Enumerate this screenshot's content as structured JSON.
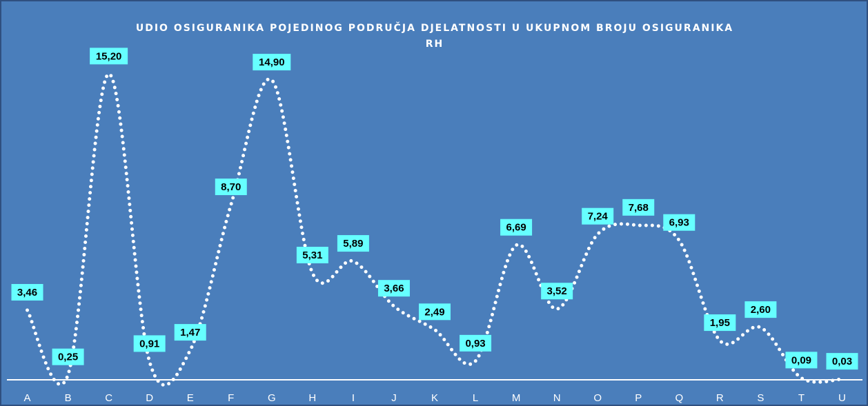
{
  "chart_data": {
    "type": "line",
    "title": "UDIO OSIGURANIKA POJEDINOG PODRUČJA DJELATNOSTI U UKUPNOM BROJU OSIGURANIKA RH",
    "categories": [
      "A",
      "B",
      "C",
      "D",
      "E",
      "F",
      "G",
      "H",
      "I",
      "J",
      "K",
      "L",
      "M",
      "N",
      "O",
      "P",
      "Q",
      "R",
      "S",
      "T",
      "U"
    ],
    "series": [
      {
        "name": null,
        "color": "#ffffff",
        "values": [
          3.46,
          0.25,
          15.2,
          0.91,
          1.47,
          8.7,
          14.9,
          5.31,
          5.89,
          3.66,
          2.49,
          0.93,
          6.69,
          3.52,
          7.24,
          7.68,
          6.93,
          1.95,
          2.6,
          0.09,
          0.03
        ],
        "value_labels": [
          "3,46",
          "0,25",
          "15,20",
          "0,91",
          "1,47",
          "8,70",
          "14,90",
          "5,31",
          "5,89",
          "3,66",
          "2,49",
          "0,93",
          "6,69",
          "3,52",
          "7,24",
          "7,68",
          "6,93",
          "1,95",
          "2,60",
          "0,09",
          "0,03"
        ]
      }
    ],
    "label_color": "#66ffff",
    "ylim": [
      0,
      16
    ]
  }
}
